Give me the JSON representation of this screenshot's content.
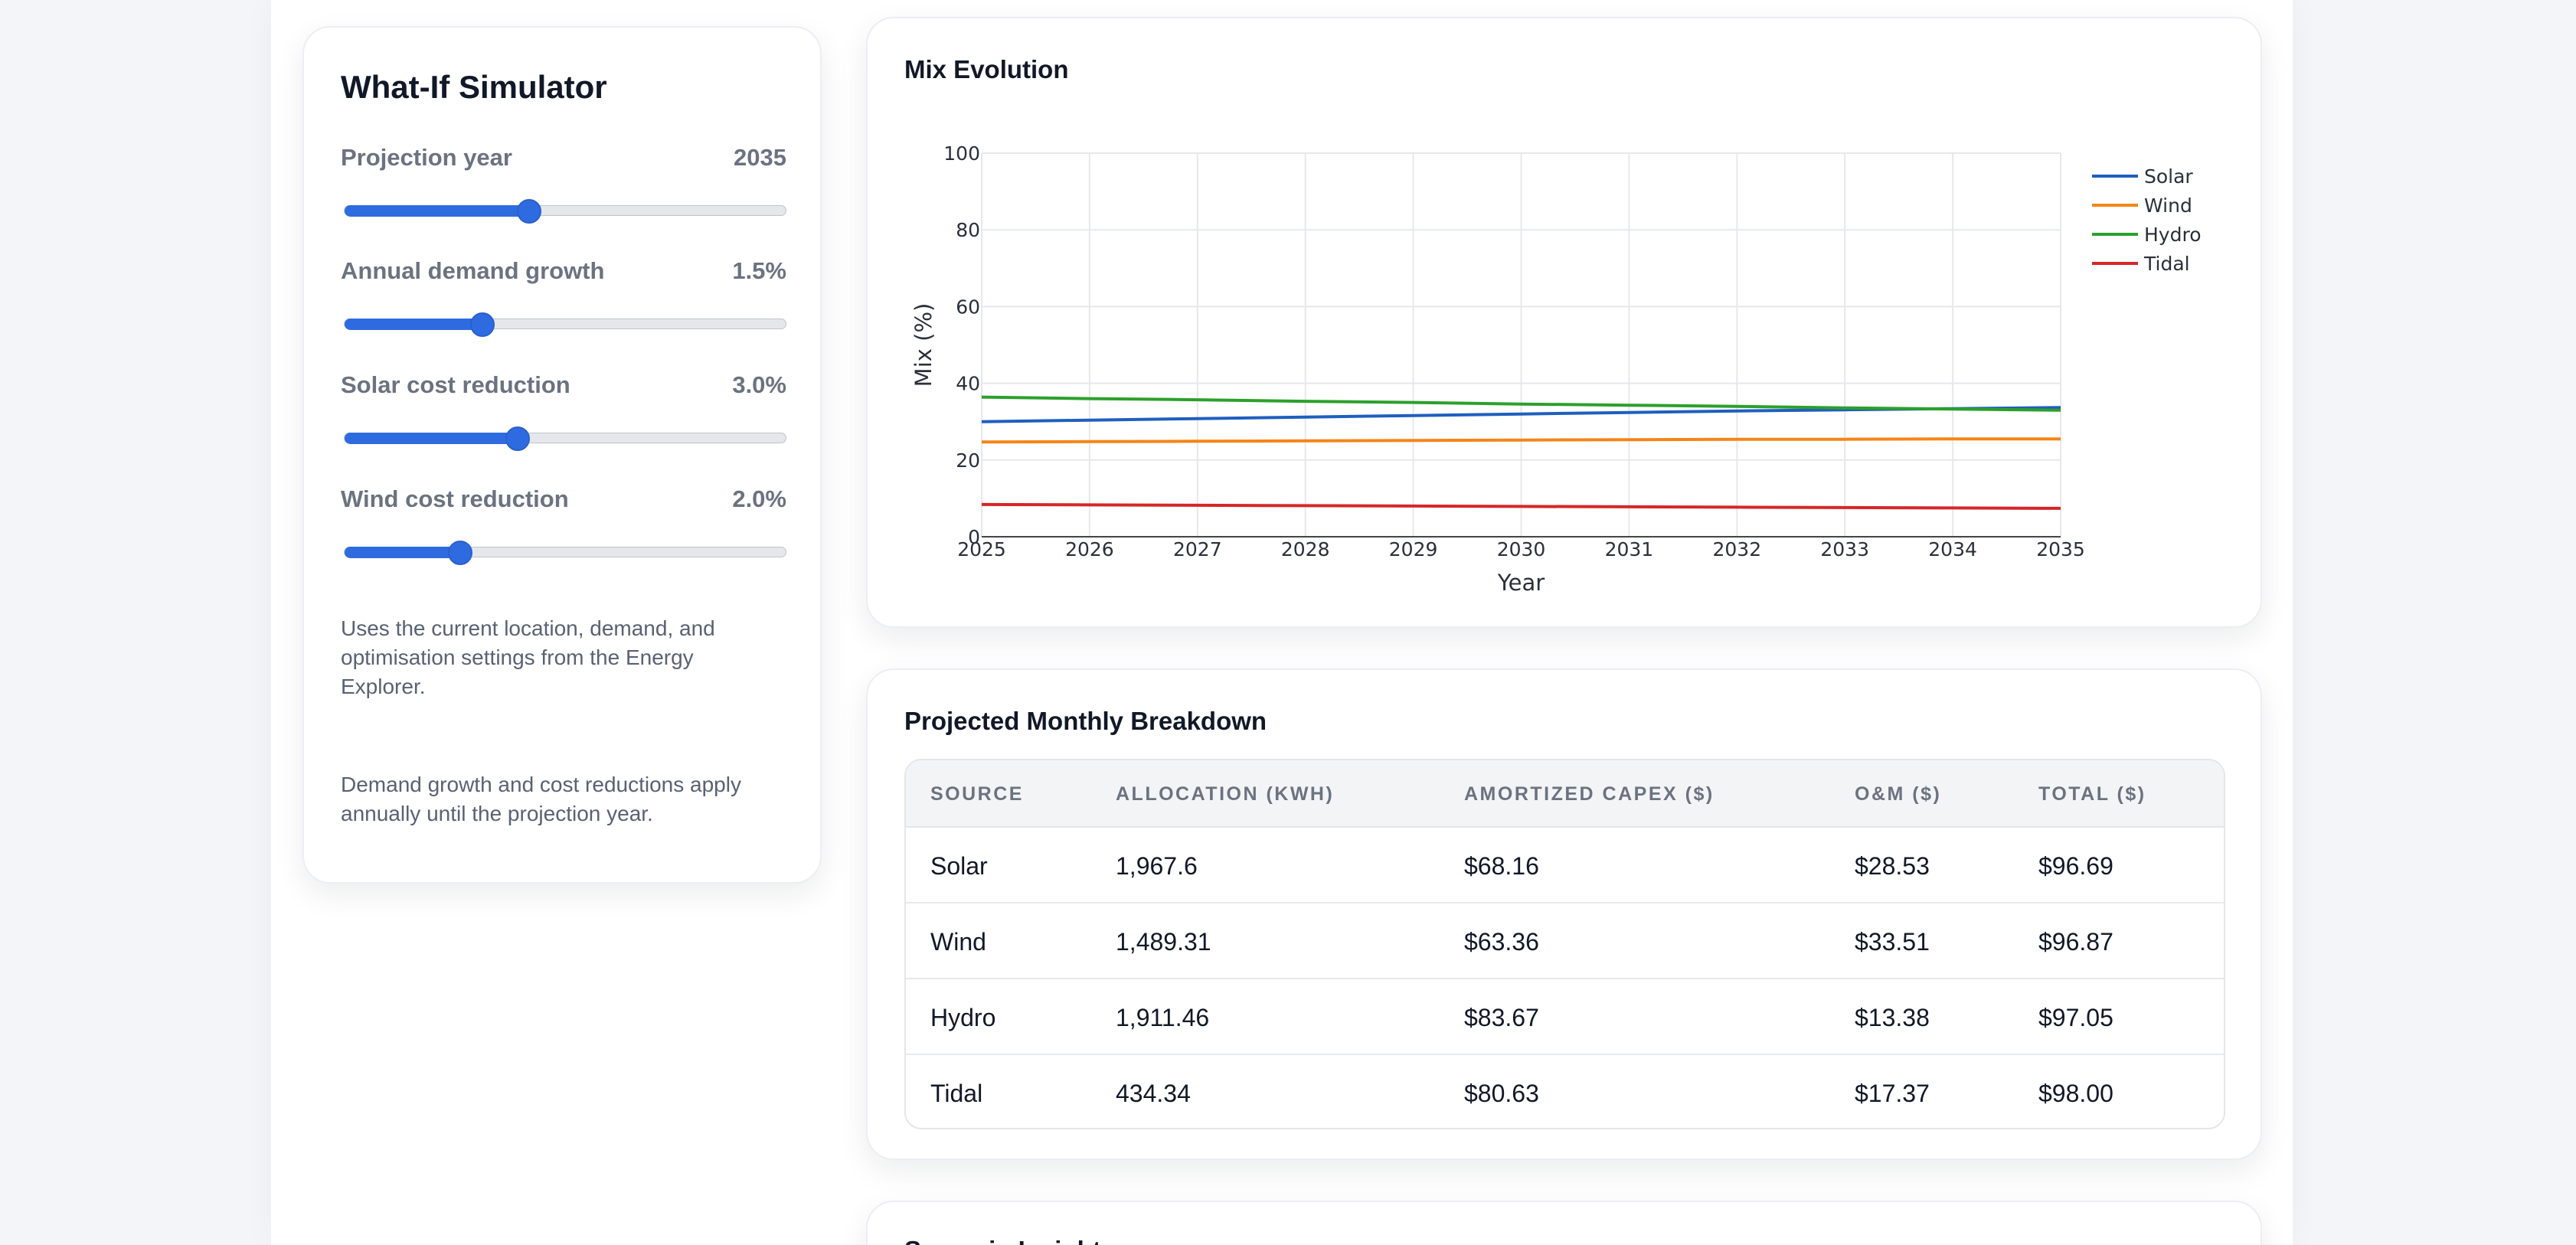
{
  "simulator": {
    "title": "What-If Simulator",
    "controls": [
      {
        "label": "Projection year",
        "value": "2035",
        "fraction": 0.418
      },
      {
        "label": "Annual demand growth",
        "value": "1.5%",
        "fraction": 0.312
      },
      {
        "label": "Solar cost reduction",
        "value": "3.0%",
        "fraction": 0.393
      },
      {
        "label": "Wind cost reduction",
        "value": "2.0%",
        "fraction": 0.263
      }
    ],
    "note_1": "Uses the current location, demand, and optimisation settings from the Energy Explorer.",
    "note_2": "Demand growth and cost reductions apply annually until the projection year."
  },
  "mix_evolution": {
    "title": "Mix Evolution",
    "chart_data": {
      "type": "line",
      "title": "",
      "xlabel": "Year",
      "ylabel": "Mix (%)",
      "x": [
        2025,
        2026,
        2027,
        2028,
        2029,
        2030,
        2031,
        2032,
        2033,
        2034,
        2035
      ],
      "xlim": [
        2025,
        2035
      ],
      "ylim": [
        0,
        100
      ],
      "yticks": [
        0,
        20,
        40,
        60,
        80,
        100
      ],
      "grid": true,
      "legend_position": "top-right",
      "series": [
        {
          "name": "Solar",
          "color": "#1f5fbf",
          "values": [
            30.0,
            30.4,
            30.8,
            31.2,
            31.6,
            32.0,
            32.4,
            32.8,
            33.1,
            33.4,
            33.7
          ]
        },
        {
          "name": "Wind",
          "color": "#f58518",
          "values": [
            24.7,
            24.8,
            24.9,
            25.0,
            25.1,
            25.2,
            25.3,
            25.4,
            25.4,
            25.5,
            25.5
          ]
        },
        {
          "name": "Hydro",
          "color": "#2ca02c",
          "values": [
            36.4,
            36.0,
            35.7,
            35.3,
            35.0,
            34.6,
            34.3,
            34.0,
            33.6,
            33.3,
            33.0
          ]
        },
        {
          "name": "Tidal",
          "color": "#d62728",
          "values": [
            8.4,
            8.3,
            8.2,
            8.1,
            8.0,
            7.9,
            7.8,
            7.7,
            7.6,
            7.5,
            7.4
          ]
        }
      ]
    }
  },
  "breakdown": {
    "title": "Projected Monthly Breakdown",
    "headers": [
      "SOURCE",
      "ALLOCATION (KWH)",
      "AMORTIZED CAPEX ($)",
      "O&M ($)",
      "TOTAL ($)"
    ],
    "rows": [
      [
        "Solar",
        "1,967.6",
        "$68.16",
        "$28.53",
        "$96.69"
      ],
      [
        "Wind",
        "1,489.31",
        "$63.36",
        "$33.51",
        "$96.87"
      ],
      [
        "Hydro",
        "1,911.46",
        "$83.67",
        "$13.38",
        "$97.05"
      ],
      [
        "Tidal",
        "434.34",
        "$80.63",
        "$17.37",
        "$98.00"
      ]
    ]
  },
  "next_section": {
    "title": "Scenario Insights"
  }
}
